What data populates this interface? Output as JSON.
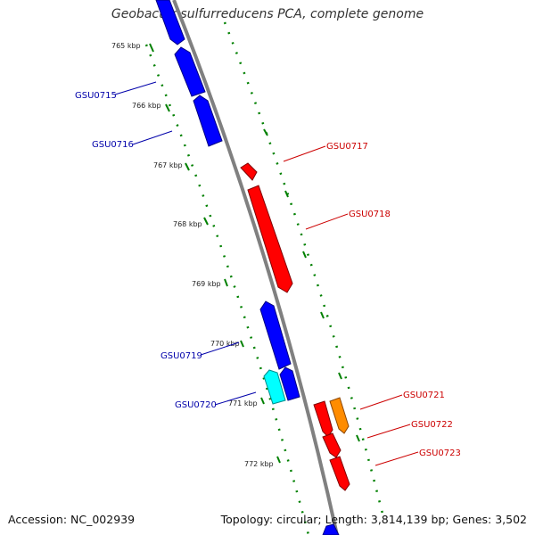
{
  "title": "Geobacter sulfurreducens PCA, complete genome",
  "footer": {
    "accession": "Accession: NC_002939",
    "summary": "Topology: circular; Length: 3,814,139 bp; Genes: 3,502"
  },
  "colors": {
    "backbone": "#808080",
    "forward_gene": "#ff0000",
    "reverse_gene": "#0000ff",
    "forward_label": "#cc0000",
    "reverse_label": "#0000aa",
    "orange_gene": "#ff8c00",
    "cyan_gene": "#00ffff",
    "tick_dots": "#008000"
  },
  "ticks": [
    "765 kbp",
    "766 kbp",
    "767 kbp",
    "768 kbp",
    "769 kbp",
    "770 kbp",
    "771 kbp",
    "772 kbp"
  ],
  "genes": [
    {
      "id": "GSU0715",
      "strand": "reverse",
      "color": "#0000ff"
    },
    {
      "id": "GSU0716",
      "strand": "reverse",
      "color": "#0000ff"
    },
    {
      "id": "GSU0717",
      "strand": "forward",
      "color": "#ff0000"
    },
    {
      "id": "GSU0718",
      "strand": "forward",
      "color": "#ff0000"
    },
    {
      "id": "GSU0719",
      "strand": "reverse",
      "color": "#0000ff"
    },
    {
      "id": "GSU0720",
      "strand": "reverse",
      "color": "#00ffff"
    },
    {
      "id": "GSU0721",
      "strand": "forward",
      "color": "#ff8c00"
    },
    {
      "id": "GSU0722",
      "strand": "forward",
      "color": "#ff0000"
    },
    {
      "id": "GSU0723",
      "strand": "forward",
      "color": "#ff0000"
    }
  ]
}
